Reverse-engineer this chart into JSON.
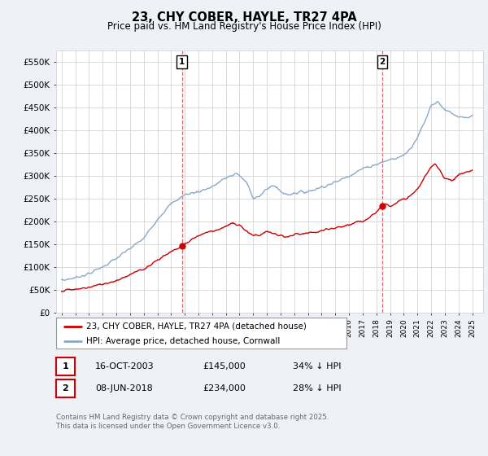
{
  "title": "23, CHY COBER, HAYLE, TR27 4PA",
  "subtitle": "Price paid vs. HM Land Registry's House Price Index (HPI)",
  "ylim": [
    0,
    575000
  ],
  "yticks": [
    0,
    50000,
    100000,
    150000,
    200000,
    250000,
    300000,
    350000,
    400000,
    450000,
    500000,
    550000
  ],
  "ytick_labels": [
    "£0",
    "£50K",
    "£100K",
    "£150K",
    "£200K",
    "£250K",
    "£300K",
    "£350K",
    "£400K",
    "£450K",
    "£500K",
    "£550K"
  ],
  "xlim_start": 1994.6,
  "xlim_end": 2025.8,
  "legend1_label": "23, CHY COBER, HAYLE, TR27 4PA (detached house)",
  "legend2_label": "HPI: Average price, detached house, Cornwall",
  "red_color": "#cc0000",
  "blue_color": "#88aacc",
  "point1_x": 2003.79,
  "point1_y": 145000,
  "point2_x": 2018.44,
  "point2_y": 234000,
  "table_row1": [
    "1",
    "16-OCT-2003",
    "£145,000",
    "34% ↓ HPI"
  ],
  "table_row2": [
    "2",
    "08-JUN-2018",
    "£234,000",
    "28% ↓ HPI"
  ],
  "footer": "Contains HM Land Registry data © Crown copyright and database right 2025.\nThis data is licensed under the Open Government Licence v3.0.",
  "bg_color": "#eef2f7",
  "plot_bg": "#ffffff",
  "grid_color": "#cccccc"
}
